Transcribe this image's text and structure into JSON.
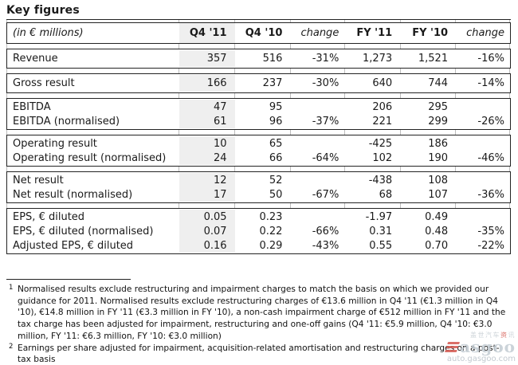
{
  "page_title": "Key figures",
  "table": {
    "header": {
      "label": "(in € millions)",
      "cols": [
        "Q4 '11",
        "Q4 '10",
        "change",
        "FY '11",
        "FY '10",
        "change"
      ]
    },
    "groups": [
      {
        "rows": [
          {
            "label": "Revenue",
            "values": [
              "357",
              "516",
              "-31%",
              "1,273",
              "1,521",
              "-16%"
            ]
          }
        ]
      },
      {
        "rows": [
          {
            "label": "Gross result",
            "values": [
              "166",
              "237",
              "-30%",
              "640",
              "744",
              "-14%"
            ]
          }
        ]
      },
      {
        "rows": [
          {
            "label": "EBITDA",
            "values": [
              "47",
              "95",
              "",
              "206",
              "295",
              ""
            ]
          },
          {
            "label": "EBITDA (normalised)",
            "values": [
              "61",
              "96",
              "-37%",
              "221",
              "299",
              "-26%"
            ]
          }
        ]
      },
      {
        "rows": [
          {
            "label": "Operating result",
            "values": [
              "10",
              "65",
              "",
              "-425",
              "186",
              ""
            ]
          },
          {
            "label": "Operating result (normalised)",
            "values": [
              "24",
              "66",
              "-64%",
              "102",
              "190",
              "-46%"
            ]
          }
        ]
      },
      {
        "rows": [
          {
            "label": "Net result",
            "values": [
              "12",
              "52",
              "",
              "-438",
              "108",
              ""
            ]
          },
          {
            "label": "Net result (normalised)",
            "values": [
              "17",
              "50",
              "-67%",
              "68",
              "107",
              "-36%"
            ]
          }
        ]
      },
      {
        "rows": [
          {
            "label": "EPS, € diluted",
            "values": [
              "0.05",
              "0.23",
              "",
              "-1.97",
              "0.49",
              ""
            ]
          },
          {
            "label": "EPS, € diluted (normalised)",
            "values": [
              "0.07",
              "0.22",
              "-66%",
              "0.31",
              "0.48",
              "-35%"
            ]
          },
          {
            "label": "Adjusted EPS, € diluted",
            "values": [
              "0.16",
              "0.29",
              "-43%",
              "0.55",
              "0.70",
              "-22%"
            ]
          }
        ]
      }
    ]
  },
  "footnotes": [
    {
      "marker": "1",
      "text": "Normalised results exclude restructuring and impairment charges to match the basis on which we provided our guidance for 2011. Normalised results exclude restructuring charges of €13.6 million in Q4 '11 (€1.3 million in Q4 '10), €14.8 million in FY '11 (€3.3 million in FY '10), a non-cash impairment charge of €512 million in FY '11 and the tax charge has been adjusted for impairment, restructuring and one-off gains (Q4 '11: €5.9 million, Q4 '10: €3.0 million, FY '11: €6.3 million, FY '10: €3.0 million)"
    },
    {
      "marker": "2",
      "text": "Earnings per share adjusted for impairment, acquisition-related amortisation and restructuring charges on a post-tax basis"
    }
  ],
  "watermark": {
    "cn_gray1": "盖世汽车",
    "cn_red": "资",
    "cn_gray2": "讯",
    "brand": "asgoo",
    "url": "auto.gasgoo.com"
  },
  "colors": {
    "shaded_column": "#efefef",
    "border": "#232323",
    "grid_tick": "#bdbdbd",
    "watermark_gray": "#c3ccd3",
    "watermark_red": "#d4574e"
  }
}
